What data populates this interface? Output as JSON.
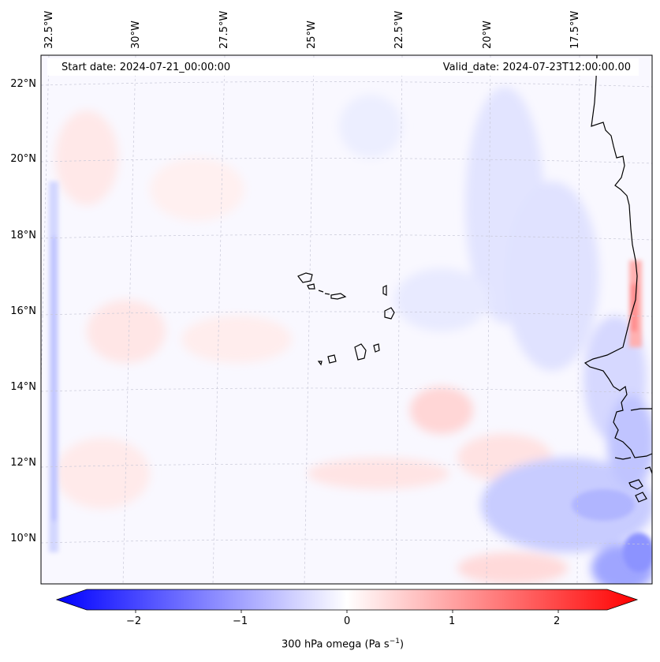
{
  "map": {
    "start_date": "Start date: 2024-07-21_00:00:00",
    "valid_date": "Valid_date: 2024-07-23T12:00:00.00",
    "lon_labels": [
      "32.5°W",
      "30°W",
      "27.5°W",
      "25°W",
      "22.5°W",
      "20°W",
      "17.5°W"
    ],
    "lat_labels": [
      "22°N",
      "20°N",
      "18°N",
      "16°N",
      "14°N",
      "12°N",
      "10°N"
    ],
    "colorbar": {
      "ticks": [
        "−2",
        "−1",
        "0",
        "1",
        "2"
      ],
      "label": "300 hPa omega (Pa s",
      "label_sup": "−1",
      "label_end": ")",
      "min_color": "#0000ff",
      "mid_color": "#ffffff",
      "max_color": "#ff0000"
    },
    "colors": {
      "coast": "#000000",
      "grid": "#c8c8d8"
    }
  }
}
